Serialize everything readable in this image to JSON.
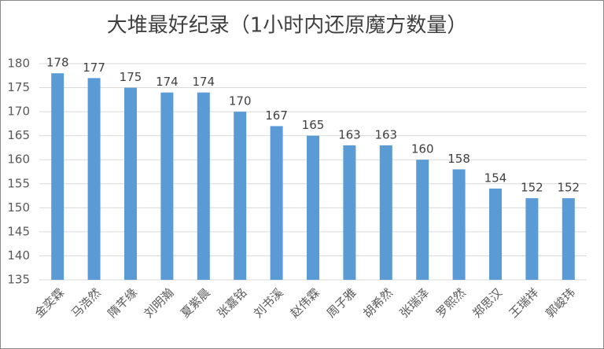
{
  "chart_data": {
    "type": "bar",
    "title": "大堆最好纪录（1小时内还原魔方数量）",
    "categories": [
      "金奕霖",
      "马浩然",
      "隋芊缘",
      "刘明瀚",
      "夏紫晨",
      "张嘉铭",
      "刘书溪",
      "赵伟霖",
      "周子雅",
      "胡希然",
      "张瑞泽",
      "罗熙然",
      "郑思汉",
      "王瑞祥",
      "郭峻玮"
    ],
    "values": [
      178,
      177,
      175,
      174,
      174,
      170,
      167,
      165,
      163,
      163,
      160,
      158,
      154,
      152,
      152
    ],
    "color": "#5b9bd5",
    "ylim": [
      135,
      180
    ],
    "yticks": [
      135,
      140,
      145,
      150,
      155,
      160,
      165,
      170,
      175,
      180
    ],
    "grid": true
  }
}
